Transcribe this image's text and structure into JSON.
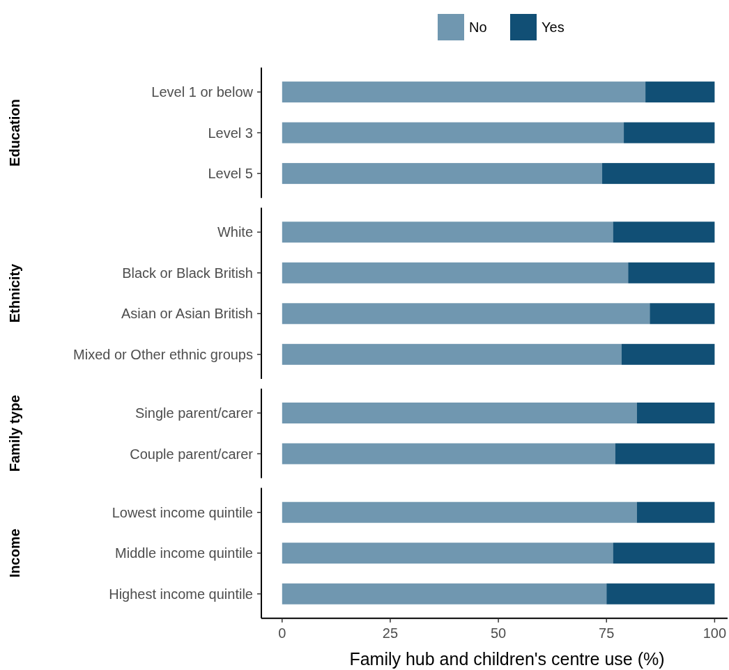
{
  "chart_data": [
    {
      "type": "bar",
      "orientation": "horizontal",
      "stacked": true,
      "ylabel": "Education",
      "categories": [
        "Level 1 or below",
        "Level 3",
        "Level 5"
      ],
      "series": [
        {
          "name": "No",
          "color": "#7097b0",
          "values": [
            84,
            79,
            74
          ]
        },
        {
          "name": "Yes",
          "color": "#114f75",
          "values": [
            16,
            21,
            26
          ]
        }
      ],
      "xlim": [
        -4.8,
        103
      ],
      "tick_labels": "y",
      "legend": "top",
      "grid": false
    },
    {
      "type": "bar",
      "orientation": "horizontal",
      "stacked": true,
      "ylabel": "Ethnicity",
      "categories": [
        "White",
        "Black or Black British",
        "Asian or Asian British",
        "Mixed or Other ethnic groups"
      ],
      "series": [
        {
          "color": "#7097b0",
          "values": [
            76.5,
            80,
            85,
            78.5
          ]
        },
        {
          "color": "#114f75",
          "values": [
            23.5,
            20,
            15,
            21.5
          ]
        }
      ],
      "xlim": [
        -4.8,
        103
      ],
      "tick_labels": "y",
      "grid": false
    },
    {
      "type": "bar",
      "orientation": "horizontal",
      "stacked": true,
      "ylabel": "Family type",
      "categories": [
        "Single parent/carer",
        "Couple parent/carer"
      ],
      "series": [
        {
          "color": "#7097b0",
          "values": [
            82,
            77
          ]
        },
        {
          "color": "#114f75",
          "values": [
            18,
            23
          ]
        }
      ],
      "xlim": [
        -4.8,
        103
      ],
      "tick_labels": "y",
      "grid": false
    },
    {
      "type": "bar",
      "orientation": "horizontal",
      "stacked": true,
      "ylabel": "Income",
      "xlabel": "Family hub and children's centre use (%)",
      "categories": [
        "Lowest income quintile",
        "Middle income quintile",
        "Highest income quintile"
      ],
      "series": [
        {
          "color": "#7097b0",
          "values": [
            82,
            76.5,
            75
          ]
        },
        {
          "color": "#114f75",
          "values": [
            18,
            23.5,
            25
          ]
        }
      ],
      "xlim": [
        -4.8,
        103
      ],
      "xticks": [
        0,
        25,
        50,
        75,
        100
      ],
      "grid": false
    }
  ]
}
